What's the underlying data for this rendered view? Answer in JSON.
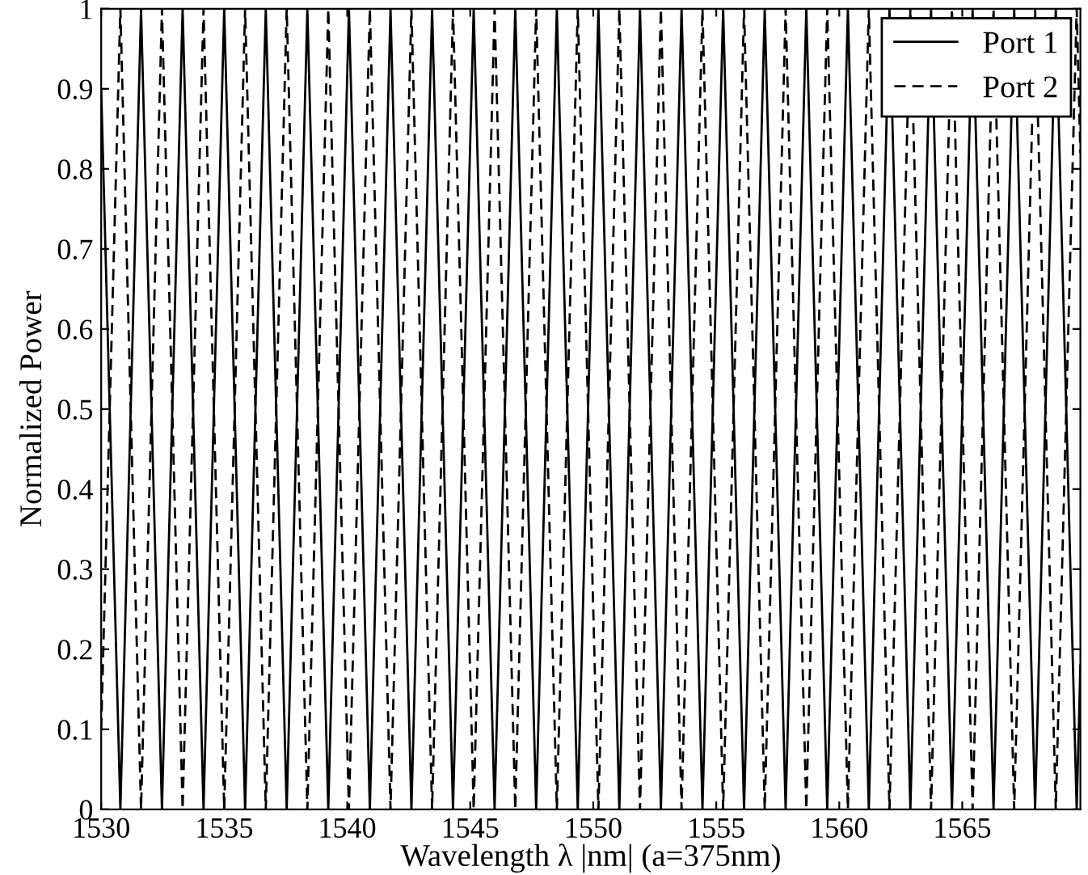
{
  "chart_data": {
    "type": "line",
    "xlabel": "Wavelength λ |nm| (a=375nm)",
    "ylabel": "Normalized Power",
    "x": [
      1530,
      1530.78,
      1531.62,
      1532.47,
      1533.31,
      1534.16,
      1535.0,
      1535.85,
      1536.69,
      1537.54,
      1538.38,
      1539.23,
      1540.07,
      1540.92,
      1541.76,
      1542.61,
      1543.45,
      1544.3,
      1545.14,
      1545.99,
      1546.83,
      1547.68,
      1548.52,
      1549.37,
      1550.21,
      1551.06,
      1551.9,
      1552.75,
      1553.59,
      1554.44,
      1555.28,
      1556.13,
      1556.97,
      1557.82,
      1558.66,
      1559.51,
      1560.35,
      1561.2,
      1562.04,
      1562.89,
      1563.73,
      1564.58,
      1565.42,
      1566.27,
      1567.11,
      1567.96,
      1568.8,
      1569.65,
      1569.8
    ],
    "series": [
      {
        "name": "Port 1",
        "color": "#000000",
        "line_style": "solid",
        "values": [
          0.9,
          0,
          1,
          0,
          1,
          0,
          1,
          0,
          1,
          0,
          1,
          0,
          1,
          0,
          1,
          0,
          1,
          0,
          1,
          0,
          1,
          0,
          1,
          0,
          1,
          0,
          1,
          0,
          1,
          0,
          1,
          0,
          1,
          0,
          1,
          0,
          1,
          0,
          1,
          0,
          1,
          0,
          1,
          0,
          1,
          0,
          1,
          0,
          0.18
        ]
      },
      {
        "name": "Port 2",
        "color": "#000000",
        "line_style": "dashed",
        "values": [
          0.1,
          1,
          0,
          1,
          0,
          1,
          0,
          1,
          0,
          1,
          0,
          1,
          0,
          1,
          0,
          1,
          0,
          1,
          0,
          1,
          0,
          1,
          0,
          1,
          0,
          1,
          0,
          1,
          0,
          1,
          0,
          1,
          0,
          1,
          0,
          1,
          0,
          1,
          0,
          1,
          0,
          1,
          0,
          1,
          0,
          1,
          0,
          1,
          0.82
        ]
      }
    ],
    "xlim": [
      1530,
      1569.8
    ],
    "ylim": [
      0,
      1
    ],
    "xticks": [
      1530,
      1535,
      1540,
      1545,
      1550,
      1555,
      1560,
      1565
    ],
    "yticks": [
      0,
      0.1,
      0.2,
      0.3,
      0.4,
      0.5,
      0.6,
      0.7,
      0.8,
      0.9,
      1
    ],
    "legend": "top right",
    "grid": false
  }
}
